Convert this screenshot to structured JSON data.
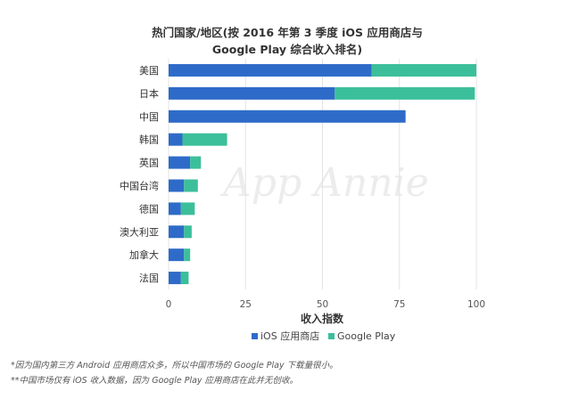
{
  "chart_data": {
    "type": "bar",
    "orientation": "horizontal",
    "stacked": true,
    "title_lines": [
      "热门国家/地区(按 2016 年第 3 季度 iOS 应用商店与",
      "Google Play 综合收入排名)"
    ],
    "categories": [
      "美国",
      "日本",
      "中国",
      "韩国",
      "英国",
      "中国台湾",
      "德国",
      "澳大利亚",
      "加拿大",
      "法国"
    ],
    "series": [
      {
        "name": "iOS 应用商店",
        "color": "#2e6bc9",
        "values": [
          66,
          54,
          77,
          4.5,
          7,
          5,
          4,
          5,
          5,
          4
        ]
      },
      {
        "name": "Google Play",
        "color": "#3bbf9a",
        "values": [
          34,
          45.5,
          0,
          14.5,
          3.5,
          4.5,
          4.5,
          2.5,
          2,
          2.5
        ]
      }
    ],
    "xlim": [
      0,
      100
    ],
    "xticks": [
      "0",
      "25",
      "50",
      "75",
      "100"
    ],
    "xlabel": "收入指数",
    "ylabel": "",
    "legend_position": "bottom",
    "grid": true
  },
  "watermark": "App Annie",
  "footnotes": [
    "*因为国内第三方 Android 应用商店众多，所以中国市场的 Google Play 下载量很小。",
    "**中国市场仅有 iOS 收入数据，因为 Google Play 应用商店在此并无创收。"
  ]
}
